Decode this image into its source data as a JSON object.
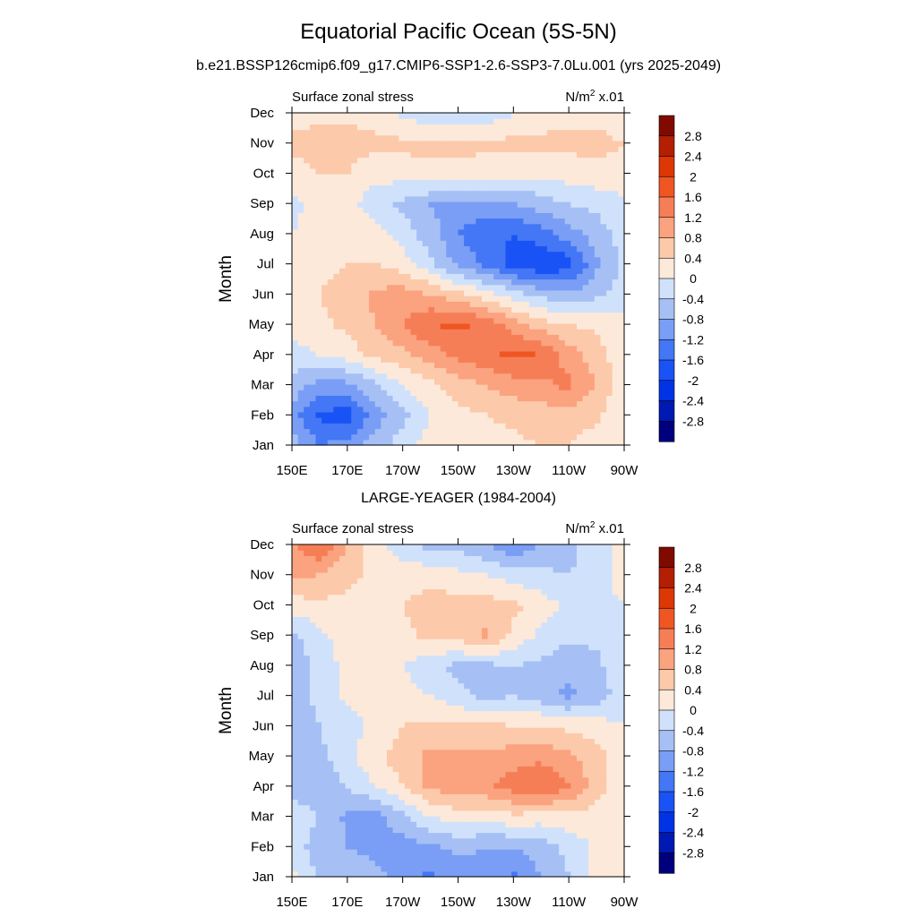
{
  "title": "Equatorial Pacific Ocean (5S-5N)",
  "subtitle": "b.e21.BSSP126cmip6.f09_g17.CMIP6-SSP1-2.6-SSP3-7.0Lu.001 (yrs 2025-2049)",
  "colors": [
    "#00007f",
    "#0019b2",
    "#0033e5",
    "#1a53f5",
    "#4477f5",
    "#7a9ef5",
    "#a6c0f5",
    "#d0e2fb",
    "#fde9d9",
    "#fcc9aa",
    "#fba27f",
    "#f67e56",
    "#ef5622",
    "#dc3704",
    "#b41e02",
    "#800a00"
  ],
  "chart_data": [
    {
      "type": "heatmap",
      "panel_title": "",
      "left_label": "Surface zonal stress",
      "right_label": "N/m",
      "right_label_sup": "2",
      "right_label_tail": " x.01",
      "ylabel": "Month",
      "x": [
        "150E",
        "170E",
        "170W",
        "150W",
        "130W",
        "110W",
        "90W"
      ],
      "y": [
        "Jan",
        "Feb",
        "Mar",
        "Apr",
        "May",
        "Jun",
        "Jul",
        "Aug",
        "Sep",
        "Oct",
        "Nov",
        "Dec"
      ],
      "colorbar_levels": [
        "2.8",
        "2.4",
        "2",
        "1.6",
        "1.2",
        "0.8",
        "0.4",
        "0",
        "-0.4",
        "-0.8",
        "-1.2",
        "-1.6",
        "-2",
        "-2.4",
        "-2.8"
      ],
      "values": [
        [
          -0.6,
          -1.2,
          -1.0,
          -0.6,
          -0.2,
          0.2,
          0.3,
          0.2,
          0.3,
          0.4,
          0.4,
          0.2,
          0.0
        ],
        [
          -1.0,
          -1.7,
          -1.8,
          -1.0,
          -0.5,
          0.0,
          0.3,
          0.4,
          0.5,
          0.6,
          0.6,
          0.5,
          0.0
        ],
        [
          -0.5,
          -1.0,
          -0.9,
          -0.5,
          0.0,
          0.3,
          0.6,
          0.8,
          1.0,
          1.1,
          1.3,
          0.8,
          0.1
        ],
        [
          -0.2,
          0.0,
          0.2,
          0.5,
          0.7,
          1.0,
          1.3,
          1.5,
          1.7,
          1.6,
          1.0,
          0.6,
          0.1
        ],
        [
          0.2,
          0.3,
          0.5,
          0.8,
          1.2,
          1.6,
          1.7,
          1.5,
          1.0,
          0.6,
          0.4,
          0.3,
          0.1
        ],
        [
          0.3,
          0.4,
          0.6,
          0.9,
          1.0,
          0.8,
          0.5,
          0.2,
          -0.2,
          -0.5,
          -0.7,
          -0.5,
          -0.2
        ],
        [
          0.3,
          0.3,
          0.4,
          0.4,
          0.2,
          -0.3,
          -0.9,
          -1.3,
          -1.8,
          -2.0,
          -1.8,
          -0.9,
          -0.3
        ],
        [
          0.0,
          0.2,
          0.3,
          0.2,
          -0.2,
          -0.6,
          -1.2,
          -1.5,
          -1.6,
          -1.4,
          -1.0,
          -0.6,
          -0.2
        ],
        [
          -0.1,
          0.1,
          0.1,
          -0.2,
          -0.5,
          -0.8,
          -1.0,
          -0.9,
          -0.8,
          -0.6,
          -0.4,
          -0.3,
          -0.1
        ],
        [
          0.2,
          0.4,
          0.4,
          0.1,
          0.2,
          0.3,
          0.3,
          0.2,
          0.1,
          0.1,
          0.2,
          0.3,
          0.3
        ],
        [
          0.5,
          0.6,
          0.6,
          0.5,
          0.5,
          0.5,
          0.5,
          0.5,
          0.5,
          0.5,
          0.5,
          0.5,
          0.4
        ],
        [
          0.2,
          0.3,
          0.3,
          0.2,
          -0.1,
          -0.3,
          -0.4,
          -0.3,
          0.0,
          0.2,
          0.3,
          0.3,
          0.2
        ]
      ]
    },
    {
      "type": "heatmap",
      "panel_title": "LARGE-YEAGER (1984-2004)",
      "left_label": "Surface zonal stress",
      "right_label": "N/m",
      "right_label_sup": "2",
      "right_label_tail": " x.01",
      "ylabel": "Month",
      "x": [
        "150E",
        "170E",
        "170W",
        "150W",
        "130W",
        "110W",
        "90W"
      ],
      "y": [
        "Jan",
        "Feb",
        "Mar",
        "Apr",
        "May",
        "Jun",
        "Jul",
        "Aug",
        "Sep",
        "Oct",
        "Nov",
        "Dec"
      ],
      "colorbar_levels": [
        "2.8",
        "2.4",
        "2",
        "1.6",
        "1.2",
        "0.8",
        "0.4",
        "0",
        "-0.4",
        "-0.8",
        "-1.2",
        "-1.6",
        "-2",
        "-2.4",
        "-2.8"
      ],
      "values": [
        [
          0.1,
          -0.5,
          -0.6,
          -0.7,
          -0.9,
          -1.3,
          -1.0,
          -0.9,
          -1.3,
          -0.8,
          -0.4,
          0.1,
          0.3
        ],
        [
          -0.2,
          -0.6,
          -0.8,
          -0.9,
          -1.0,
          -0.9,
          -0.7,
          -0.8,
          -0.8,
          -0.6,
          -0.3,
          0.1,
          0.3
        ],
        [
          -0.1,
          -0.4,
          -0.9,
          -1.0,
          -0.5,
          0.0,
          0.2,
          0.2,
          0.3,
          0.2,
          0.3,
          0.2,
          0.2
        ],
        [
          -0.6,
          -0.7,
          -0.4,
          0.0,
          0.4,
          0.9,
          1.0,
          1.1,
          1.4,
          1.6,
          1.2,
          0.6,
          0.1
        ],
        [
          -0.7,
          -0.5,
          -0.1,
          0.3,
          0.6,
          0.9,
          0.9,
          0.9,
          1.0,
          1.1,
          0.9,
          0.6,
          0.1
        ],
        [
          -0.7,
          -0.4,
          -0.2,
          0.1,
          0.4,
          0.5,
          0.5,
          0.5,
          0.4,
          0.4,
          0.3,
          0.2,
          0.0
        ],
        [
          -0.6,
          -0.3,
          0.1,
          0.2,
          0.2,
          0.0,
          -0.3,
          -0.5,
          -0.4,
          -0.6,
          -0.9,
          -0.6,
          -0.2
        ],
        [
          -0.8,
          -0.2,
          0.1,
          0.3,
          0.0,
          -0.3,
          -0.5,
          -0.5,
          -0.4,
          -0.5,
          -0.7,
          -0.5,
          -0.1
        ],
        [
          -0.5,
          -0.1,
          0.2,
          0.3,
          0.3,
          0.5,
          0.6,
          0.9,
          0.3,
          -0.1,
          -0.3,
          -0.3,
          -0.1
        ],
        [
          0.2,
          0.3,
          0.3,
          0.3,
          0.4,
          0.6,
          0.6,
          0.6,
          0.5,
          0.2,
          -0.1,
          -0.2,
          0.0
        ],
        [
          0.9,
          0.8,
          0.5,
          0.3,
          0.3,
          0.2,
          0.1,
          0.0,
          -0.2,
          -0.3,
          -0.4,
          -0.3,
          0.3
        ],
        [
          1.1,
          1.6,
          0.8,
          0.2,
          -0.3,
          -0.5,
          -0.5,
          -0.8,
          -1.1,
          -0.8,
          -0.5,
          -0.2,
          0.2
        ]
      ]
    }
  ]
}
